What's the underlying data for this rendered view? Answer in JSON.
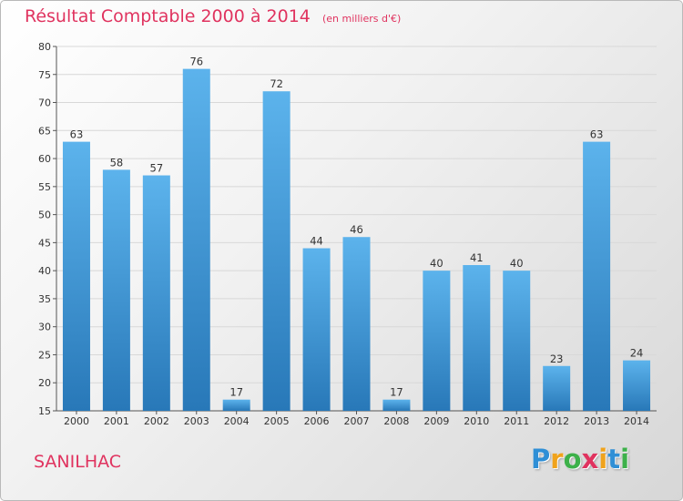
{
  "chart_data": {
    "type": "bar",
    "title": "Résultat Comptable 2000 à 2014",
    "subtitle": "(en milliers d'€)",
    "categories": [
      "2000",
      "2001",
      "2002",
      "2003",
      "2004",
      "2005",
      "2006",
      "2007",
      "2008",
      "2009",
      "2010",
      "2011",
      "2012",
      "2013",
      "2014"
    ],
    "values": [
      63,
      58,
      57,
      76,
      17,
      72,
      44,
      46,
      17,
      40,
      41,
      40,
      23,
      63,
      24
    ],
    "ylim": [
      15,
      80
    ],
    "yticks": [
      15,
      20,
      25,
      30,
      35,
      40,
      45,
      50,
      55,
      60,
      65,
      70,
      75,
      80
    ],
    "grid": true,
    "xlabel": "",
    "ylabel": ""
  },
  "commune": "SANILHAC",
  "brand": {
    "letters": [
      "P",
      "r",
      "o",
      "x",
      "i",
      "t",
      "i"
    ],
    "colors": [
      "#2f8fd6",
      "#f0a31c",
      "#3db14a",
      "#e0335f",
      "#f0a31c",
      "#2f8fd6",
      "#3db14a"
    ]
  },
  "colors": {
    "bar_light": "#5cb3ec",
    "bar_dark": "#2878b8",
    "grid": "#d8d8d8",
    "accent": "#e0335f"
  }
}
